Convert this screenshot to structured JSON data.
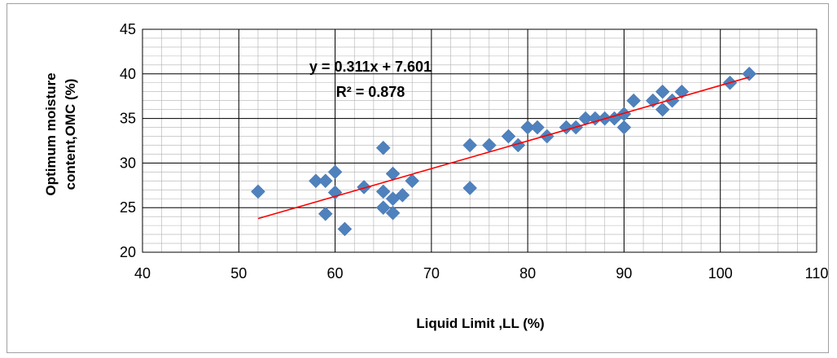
{
  "chart_data": {
    "type": "scatter",
    "title": "",
    "xlabel": "Liquid Limit ,LL (%)",
    "ylabel_line1": "Optimum moisture",
    "ylabel_line2": "content,OMC (%)",
    "xlim": [
      40,
      110
    ],
    "ylim": [
      20,
      45
    ],
    "x_ticks": [
      "40",
      "50",
      "60",
      "70",
      "80",
      "90",
      "100",
      "110"
    ],
    "y_ticks": [
      "20",
      "25",
      "30",
      "35",
      "40",
      "45"
    ],
    "grid": true,
    "marker_color": "#4f81bd",
    "trendline_color": "#ff0000",
    "trendline": {
      "slope": 0.311,
      "intercept": 7.601,
      "x_range": [
        52,
        103
      ]
    },
    "equation_label": "y = 0.311x + 7.601",
    "r2_label": "R² = 0.878",
    "series": [
      {
        "points": [
          [
            52,
            26.8
          ],
          [
            58,
            28.0
          ],
          [
            59,
            28.0
          ],
          [
            59,
            24.3
          ],
          [
            60,
            29.0
          ],
          [
            60,
            26.7
          ],
          [
            61,
            22.6
          ],
          [
            63,
            27.3
          ],
          [
            65,
            31.7
          ],
          [
            65,
            26.8
          ],
          [
            65,
            25.0
          ],
          [
            66,
            28.8
          ],
          [
            66,
            26.0
          ],
          [
            66,
            24.4
          ],
          [
            67,
            26.4
          ],
          [
            68,
            28.0
          ],
          [
            74,
            32.0
          ],
          [
            74,
            27.2
          ],
          [
            76,
            32.0
          ],
          [
            78,
            33.0
          ],
          [
            79,
            32.0
          ],
          [
            80,
            34.0
          ],
          [
            81,
            34.0
          ],
          [
            82,
            33.0
          ],
          [
            84,
            34.0
          ],
          [
            85,
            34.0
          ],
          [
            86,
            35.0
          ],
          [
            87,
            35.0
          ],
          [
            88,
            35.0
          ],
          [
            89,
            35.0
          ],
          [
            90,
            35.5
          ],
          [
            90,
            34.0
          ],
          [
            91,
            37.0
          ],
          [
            93,
            37.0
          ],
          [
            94,
            38.0
          ],
          [
            94,
            36.0
          ],
          [
            95,
            37.0
          ],
          [
            96,
            38.0
          ],
          [
            101,
            39.0
          ],
          [
            103,
            40.0
          ]
        ]
      }
    ]
  }
}
